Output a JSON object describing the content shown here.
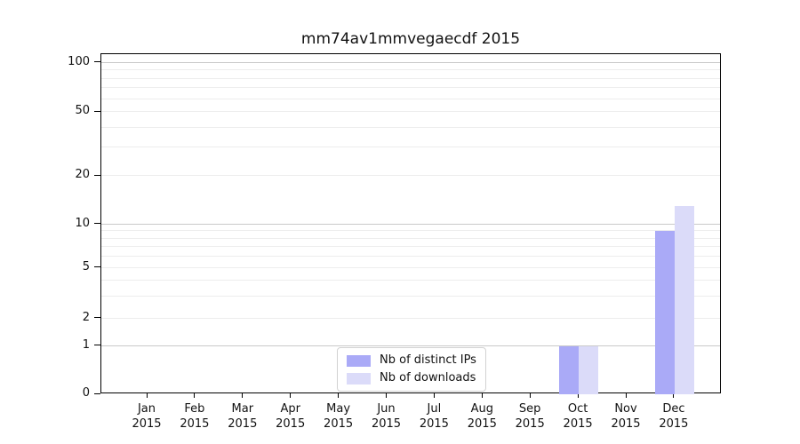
{
  "chart_data": {
    "type": "bar",
    "title": "mm74av1mmvegaecdf 2015",
    "categories": [
      "Jan",
      "Feb",
      "Mar",
      "Apr",
      "May",
      "Jun",
      "Jul",
      "Aug",
      "Sep",
      "Oct",
      "Nov",
      "Dec"
    ],
    "category_year": "2015",
    "series": [
      {
        "name": "Nb of distinct IPs",
        "color": "#aaaaf7",
        "values": [
          0,
          0,
          0,
          0,
          0,
          0,
          0,
          0,
          0,
          1,
          0,
          9
        ]
      },
      {
        "name": "Nb of downloads",
        "color": "#dbdbf9",
        "values": [
          0,
          0,
          0,
          0,
          0,
          0,
          0,
          0,
          0,
          1,
          0,
          13
        ]
      }
    ],
    "xlabel": "",
    "ylabel": "",
    "ylim": [
      0,
      112
    ],
    "yaxis": {
      "scale": "linear-below-1-log-above",
      "tick_labels": [
        "0",
        "1",
        "2",
        "5",
        "10",
        "20",
        "50",
        "100"
      ],
      "ticks": [
        0,
        1,
        2,
        5,
        10,
        20,
        50,
        100
      ],
      "major_gridlines": [
        1,
        10,
        100
      ],
      "minor_gridlines": [
        2,
        3,
        4,
        5,
        6,
        7,
        8,
        9,
        20,
        30,
        40,
        50,
        60,
        70,
        80,
        90
      ],
      "anchors_value_to_height_fraction": [
        [
          0,
          0.0
        ],
        [
          1,
          0.141
        ],
        [
          2,
          0.222
        ],
        [
          5,
          0.371
        ],
        [
          10,
          0.4987
        ],
        [
          20,
          0.642
        ],
        [
          50,
          0.83
        ],
        [
          100,
          0.9739
        ]
      ]
    },
    "grid": "both",
    "legend_position": "lower-center-inside"
  },
  "colors": {
    "bar_series_1": "#aaaaf7",
    "bar_series_2": "#dbdbf9",
    "grid_major": "#c9c9c9",
    "grid_minor": "#ededed",
    "frame": "#000000",
    "background": "#ffffff"
  }
}
